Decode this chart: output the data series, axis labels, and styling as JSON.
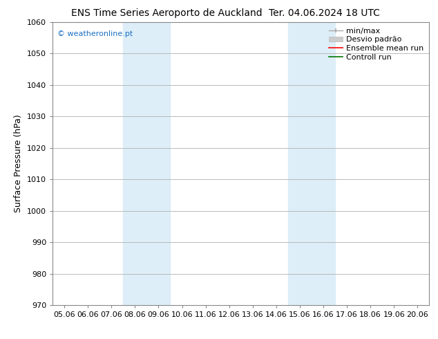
{
  "title_left": "ENS Time Series Aeroporto de Auckland",
  "title_right": "Ter. 04.06.2024 18 UTC",
  "ylabel": "Surface Pressure (hPa)",
  "ylim": [
    970,
    1060
  ],
  "yticks": [
    970,
    980,
    990,
    1000,
    1010,
    1020,
    1030,
    1040,
    1050,
    1060
  ],
  "xtick_labels": [
    "05.06",
    "06.06",
    "07.06",
    "08.06",
    "09.06",
    "10.06",
    "11.06",
    "12.06",
    "13.06",
    "14.06",
    "15.06",
    "16.06",
    "17.06",
    "18.06",
    "19.06",
    "20.06"
  ],
  "shaded_regions": [
    {
      "xstart": 3.0,
      "xend": 5.0,
      "color": "#ddeef8"
    },
    {
      "xstart": 10.0,
      "xend": 12.0,
      "color": "#ddeef8"
    }
  ],
  "watermark_text": "© weatheronline.pt",
  "watermark_color": "#1a6fc4",
  "background_color": "#ffffff",
  "plot_bg_color": "#ffffff",
  "grid_color": "#b0b0b0",
  "title_fontsize": 10,
  "axis_label_fontsize": 9,
  "tick_fontsize": 8,
  "legend_fontsize": 8
}
